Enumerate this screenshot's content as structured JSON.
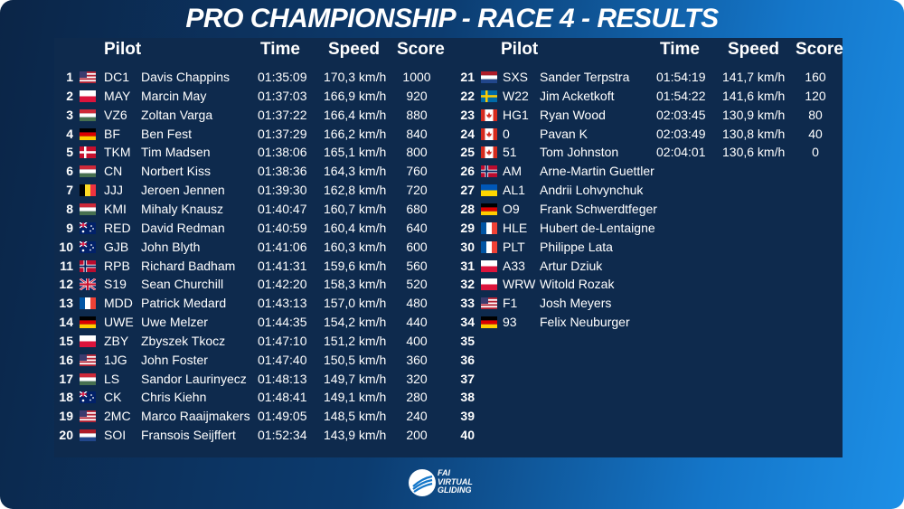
{
  "title": "PRO CHAMPIONSHIP - RACE 4 - RESULTS",
  "headers": {
    "pilot": "Pilot",
    "time": "Time",
    "speed": "Speed",
    "score": "Score"
  },
  "logo": {
    "line1": "FAI",
    "line2": "VIRTUAL",
    "line3": "GLIDING"
  },
  "colors": {
    "accent": "#1d8fe6",
    "panel": "#0e2a4d",
    "text": "#ffffff"
  },
  "left": [
    {
      "rank": "1",
      "flag": "us",
      "code": "DC1",
      "name": "Davis Chappins",
      "time": "01:35:09",
      "speed": "170,3 km/h",
      "score": "1000"
    },
    {
      "rank": "2",
      "flag": "pl",
      "code": "MAY",
      "name": "Marcin May",
      "time": "01:37:03",
      "speed": "166,9 km/h",
      "score": "920"
    },
    {
      "rank": "3",
      "flag": "hu",
      "code": "VZ6",
      "name": "Zoltan Varga",
      "time": "01:37:22",
      "speed": "166,4 km/h",
      "score": "880"
    },
    {
      "rank": "4",
      "flag": "de",
      "code": "BF",
      "name": "Ben Fest",
      "time": "01:37:29",
      "speed": "166,2 km/h",
      "score": "840"
    },
    {
      "rank": "5",
      "flag": "dk",
      "code": "TKM",
      "name": "Tim Madsen",
      "time": "01:38:06",
      "speed": "165,1 km/h",
      "score": "800"
    },
    {
      "rank": "6",
      "flag": "hu",
      "code": "CN",
      "name": "Norbert Kiss",
      "time": "01:38:36",
      "speed": "164,3 km/h",
      "score": "760"
    },
    {
      "rank": "7",
      "flag": "be",
      "code": "JJJ",
      "name": "Jeroen Jennen",
      "time": "01:39:30",
      "speed": "162,8 km/h",
      "score": "720"
    },
    {
      "rank": "8",
      "flag": "hu",
      "code": "KMI",
      "name": "Mihaly Knausz",
      "time": "01:40:47",
      "speed": "160,7 km/h",
      "score": "680"
    },
    {
      "rank": "9",
      "flag": "au",
      "code": "RED",
      "name": "David Redman",
      "time": "01:40:59",
      "speed": "160,4 km/h",
      "score": "640"
    },
    {
      "rank": "10",
      "flag": "au",
      "code": "GJB",
      "name": "John Blyth",
      "time": "01:41:06",
      "speed": "160,3 km/h",
      "score": "600"
    },
    {
      "rank": "11",
      "flag": "no",
      "code": "RPB",
      "name": "Richard Badham",
      "time": "01:41:31",
      "speed": "159,6 km/h",
      "score": "560"
    },
    {
      "rank": "12",
      "flag": "gb",
      "code": "S19",
      "name": "Sean Churchill",
      "time": "01:42:20",
      "speed": "158,3 km/h",
      "score": "520"
    },
    {
      "rank": "13",
      "flag": "fr",
      "code": "MDD",
      "name": "Patrick Medard",
      "time": "01:43:13",
      "speed": "157,0 km/h",
      "score": "480"
    },
    {
      "rank": "14",
      "flag": "de",
      "code": "UWE",
      "name": "Uwe Melzer",
      "time": "01:44:35",
      "speed": "154,2 km/h",
      "score": "440"
    },
    {
      "rank": "15",
      "flag": "pl",
      "code": "ZBY",
      "name": "Zbyszek Tkocz",
      "time": "01:47:10",
      "speed": "151,2 km/h",
      "score": "400"
    },
    {
      "rank": "16",
      "flag": "us",
      "code": "1JG",
      "name": "John Foster",
      "time": "01:47:40",
      "speed": "150,5 km/h",
      "score": "360"
    },
    {
      "rank": "17",
      "flag": "hu",
      "code": "LS",
      "name": "Sandor Laurinyecz",
      "time": "01:48:13",
      "speed": "149,7 km/h",
      "score": "320"
    },
    {
      "rank": "18",
      "flag": "au",
      "code": "CK",
      "name": "Chris Kiehn",
      "time": "01:48:41",
      "speed": "149,1 km/h",
      "score": "280"
    },
    {
      "rank": "19",
      "flag": "us",
      "code": "2MC",
      "name": "Marco Raaijmakers",
      "time": "01:49:05",
      "speed": "148,5 km/h",
      "score": "240"
    },
    {
      "rank": "20",
      "flag": "nl",
      "code": "SOI",
      "name": "Fransois Seijffert",
      "time": "01:52:34",
      "speed": "143,9 km/h",
      "score": "200"
    }
  ],
  "right": [
    {
      "rank": "21",
      "flag": "nl",
      "code": "SXS",
      "name": "Sander Terpstra",
      "time": "01:54:19",
      "speed": "141,7 km/h",
      "score": "160"
    },
    {
      "rank": "22",
      "flag": "se",
      "code": "W22",
      "name": "Jim Acketkoft",
      "time": "01:54:22",
      "speed": "141,6 km/h",
      "score": "120"
    },
    {
      "rank": "23",
      "flag": "ca",
      "code": "HG1",
      "name": "Ryan Wood",
      "time": "02:03:45",
      "speed": "130,9 km/h",
      "score": "80"
    },
    {
      "rank": "24",
      "flag": "ca",
      "code": "0",
      "name": "Pavan K",
      "time": "02:03:49",
      "speed": "130,8 km/h",
      "score": "40"
    },
    {
      "rank": "25",
      "flag": "ca",
      "code": "51",
      "name": "Tom Johnston",
      "time": "02:04:01",
      "speed": "130,6 km/h",
      "score": "0"
    },
    {
      "rank": "26",
      "flag": "no",
      "code": "AM",
      "name": "Arne-Martin Guettler",
      "time": "",
      "speed": "",
      "score": ""
    },
    {
      "rank": "27",
      "flag": "ua",
      "code": "AL1",
      "name": "Andrii Lohvynchuk",
      "time": "",
      "speed": "",
      "score": ""
    },
    {
      "rank": "28",
      "flag": "de",
      "code": "O9",
      "name": "Frank Schwerdtfeger",
      "time": "",
      "speed": "",
      "score": ""
    },
    {
      "rank": "29",
      "flag": "fr",
      "code": "HLE",
      "name": "Hubert de-Lentaigne",
      "time": "",
      "speed": "",
      "score": ""
    },
    {
      "rank": "30",
      "flag": "fr",
      "code": "PLT",
      "name": "Philippe Lata",
      "time": "",
      "speed": "",
      "score": ""
    },
    {
      "rank": "31",
      "flag": "pl",
      "code": "A33",
      "name": "Artur Dziuk",
      "time": "",
      "speed": "",
      "score": ""
    },
    {
      "rank": "32",
      "flag": "pl",
      "code": "WRW",
      "name": "Witold Rozak",
      "time": "",
      "speed": "",
      "score": ""
    },
    {
      "rank": "33",
      "flag": "us",
      "code": "F1",
      "name": "Josh Meyers",
      "time": "",
      "speed": "",
      "score": ""
    },
    {
      "rank": "34",
      "flag": "de",
      "code": "93",
      "name": "Felix Neuburger",
      "time": "",
      "speed": "",
      "score": ""
    },
    {
      "rank": "35",
      "flag": "",
      "code": "",
      "name": "",
      "time": "",
      "speed": "",
      "score": ""
    },
    {
      "rank": "36",
      "flag": "",
      "code": "",
      "name": "",
      "time": "",
      "speed": "",
      "score": ""
    },
    {
      "rank": "37",
      "flag": "",
      "code": "",
      "name": "",
      "time": "",
      "speed": "",
      "score": ""
    },
    {
      "rank": "38",
      "flag": "",
      "code": "",
      "name": "",
      "time": "",
      "speed": "",
      "score": ""
    },
    {
      "rank": "39",
      "flag": "",
      "code": "",
      "name": "",
      "time": "",
      "speed": "",
      "score": ""
    },
    {
      "rank": "40",
      "flag": "",
      "code": "",
      "name": "",
      "time": "",
      "speed": "",
      "score": ""
    }
  ]
}
